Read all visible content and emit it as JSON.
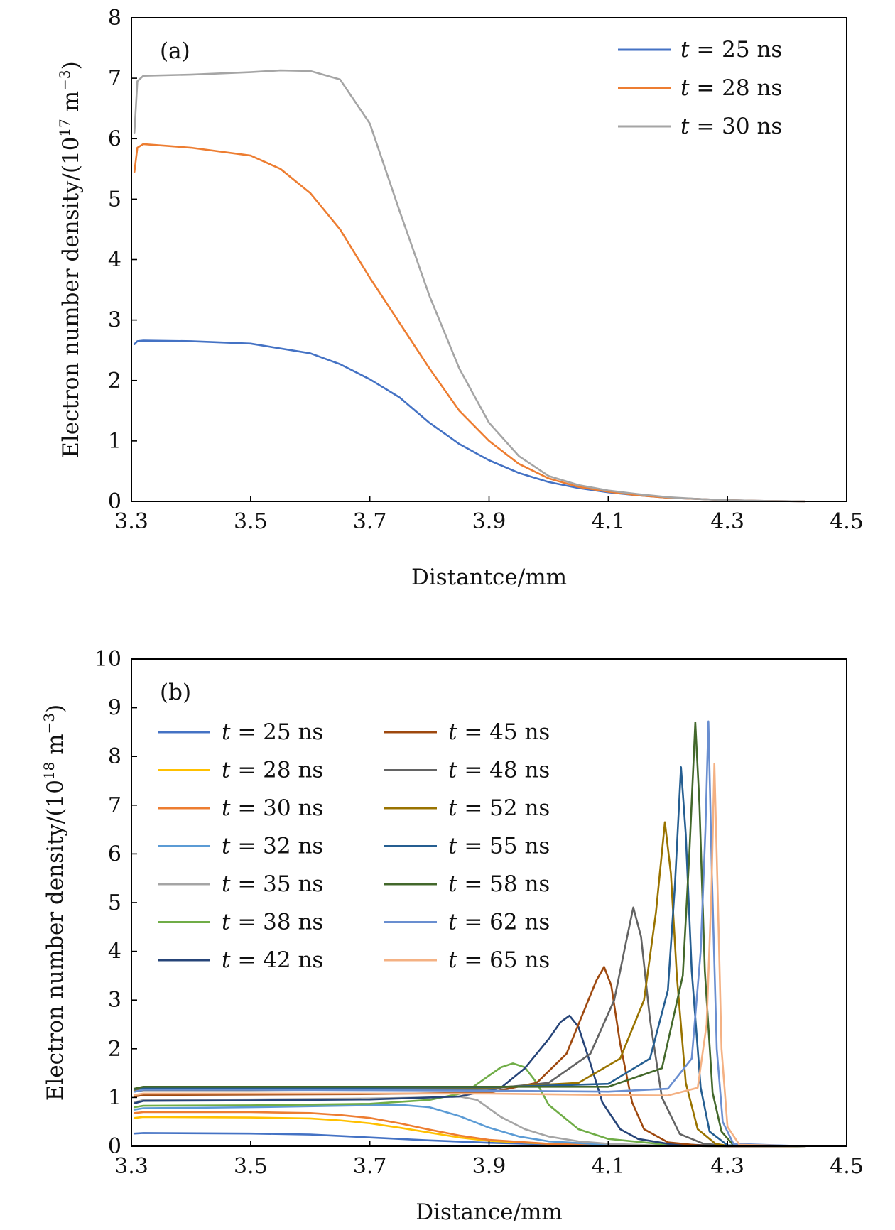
{
  "chart_data": [
    {
      "type": "line",
      "panel_label": "(a)",
      "xlabel": "Distantce/mm",
      "ylabel_prefix": "Electron number density/(10",
      "ylabel_exp": "17",
      "ylabel_unit": " m",
      "ylabel_unit_exp": "−3",
      "ylabel_suffix": ")",
      "xlim": [
        3.3,
        4.5
      ],
      "ylim": [
        0,
        8
      ],
      "xticks": [
        "3.3",
        "3.5",
        "3.7",
        "3.9",
        "4.1",
        "4.3",
        "4.5"
      ],
      "yticks": [
        "0",
        "1",
        "2",
        "3",
        "4",
        "5",
        "6",
        "7",
        "8"
      ],
      "legend_position": "top-right",
      "series": [
        {
          "name": "t = 25 ns",
          "label_var": "t",
          "label_rest": " = 25 ns",
          "color": "#4472C4",
          "x": [
            3.305,
            3.31,
            3.32,
            3.4,
            3.5,
            3.6,
            3.65,
            3.7,
            3.75,
            3.8,
            3.85,
            3.9,
            3.95,
            4.0,
            4.05,
            4.1,
            4.15,
            4.2,
            4.25,
            4.3,
            4.35,
            4.43
          ],
          "y": [
            2.6,
            2.65,
            2.66,
            2.65,
            2.61,
            2.45,
            2.27,
            2.02,
            1.72,
            1.3,
            0.95,
            0.68,
            0.47,
            0.32,
            0.22,
            0.15,
            0.1,
            0.06,
            0.04,
            0.02,
            0.01,
            0.0
          ]
        },
        {
          "name": "t = 28 ns",
          "label_var": "t",
          "label_rest": " = 28 ns",
          "color": "#ED7D31",
          "x": [
            3.305,
            3.31,
            3.32,
            3.4,
            3.5,
            3.55,
            3.6,
            3.65,
            3.7,
            3.75,
            3.8,
            3.85,
            3.9,
            3.95,
            4.0,
            4.05,
            4.1,
            4.15,
            4.2,
            4.25,
            4.3,
            4.35,
            4.43
          ],
          "y": [
            5.45,
            5.85,
            5.91,
            5.85,
            5.72,
            5.5,
            5.1,
            4.5,
            3.7,
            2.95,
            2.2,
            1.5,
            1.0,
            0.62,
            0.38,
            0.24,
            0.16,
            0.1,
            0.06,
            0.04,
            0.02,
            0.01,
            0.0
          ]
        },
        {
          "name": "t = 30 ns",
          "label_var": "t",
          "label_rest": " = 30 ns",
          "color": "#A5A5A5",
          "x": [
            3.305,
            3.31,
            3.32,
            3.4,
            3.5,
            3.55,
            3.6,
            3.65,
            3.7,
            3.75,
            3.8,
            3.85,
            3.9,
            3.95,
            4.0,
            4.05,
            4.1,
            4.15,
            4.2,
            4.25,
            4.3,
            4.35,
            4.43
          ],
          "y": [
            6.1,
            6.95,
            7.04,
            7.06,
            7.1,
            7.13,
            7.12,
            6.98,
            6.25,
            4.8,
            3.4,
            2.2,
            1.3,
            0.75,
            0.42,
            0.27,
            0.18,
            0.12,
            0.07,
            0.04,
            0.02,
            0.01,
            0.0
          ]
        }
      ]
    },
    {
      "type": "line",
      "panel_label": "(b)",
      "xlabel": "Distance/mm",
      "ylabel_prefix": "Electron number density/(10",
      "ylabel_exp": "18",
      "ylabel_unit": " m",
      "ylabel_unit_exp": "−3",
      "ylabel_suffix": ")",
      "xlim": [
        3.3,
        4.5
      ],
      "ylim": [
        0,
        10
      ],
      "xticks": [
        "3.3",
        "3.5",
        "3.7",
        "3.9",
        "4.1",
        "4.3",
        "4.5"
      ],
      "yticks": [
        "0",
        "1",
        "2",
        "3",
        "4",
        "5",
        "6",
        "7",
        "8",
        "9",
        "10"
      ],
      "legend_position": "top-left",
      "series": [
        {
          "name": "t = 25 ns",
          "label_var": "t",
          "label_rest": " = 25 ns",
          "color": "#4472C4",
          "x": [
            3.305,
            3.32,
            3.5,
            3.6,
            3.7,
            3.8,
            3.9,
            4.0,
            4.1,
            4.2,
            4.3,
            4.43
          ],
          "y": [
            0.26,
            0.27,
            0.26,
            0.24,
            0.18,
            0.12,
            0.07,
            0.04,
            0.02,
            0.01,
            0.0,
            0.0
          ]
        },
        {
          "name": "t = 28 ns",
          "label_var": "t",
          "label_rest": " = 28 ns",
          "color": "#FFC000",
          "x": [
            3.305,
            3.32,
            3.5,
            3.6,
            3.65,
            3.7,
            3.75,
            3.8,
            3.85,
            3.9,
            4.0,
            4.1,
            4.2,
            4.3,
            4.43
          ],
          "y": [
            0.58,
            0.6,
            0.59,
            0.57,
            0.53,
            0.47,
            0.38,
            0.28,
            0.18,
            0.11,
            0.05,
            0.02,
            0.01,
            0.0,
            0.0
          ]
        },
        {
          "name": "t = 30 ns",
          "label_var": "t",
          "label_rest": " = 30 ns",
          "color": "#ED7D31",
          "x": [
            3.305,
            3.32,
            3.5,
            3.6,
            3.65,
            3.7,
            3.75,
            3.8,
            3.85,
            3.9,
            4.0,
            4.1,
            4.2,
            4.3,
            4.43
          ],
          "y": [
            0.68,
            0.7,
            0.7,
            0.68,
            0.64,
            0.58,
            0.47,
            0.34,
            0.22,
            0.13,
            0.05,
            0.02,
            0.01,
            0.0,
            0.0
          ]
        },
        {
          "name": "t = 32 ns",
          "label_var": "t",
          "label_rest": " = 32 ns",
          "color": "#5B9BD5",
          "x": [
            3.305,
            3.32,
            3.5,
            3.7,
            3.75,
            3.8,
            3.85,
            3.9,
            3.95,
            4.0,
            4.1,
            4.2,
            4.3,
            4.43
          ],
          "y": [
            0.75,
            0.78,
            0.8,
            0.84,
            0.85,
            0.8,
            0.62,
            0.38,
            0.2,
            0.1,
            0.03,
            0.01,
            0.0,
            0.0
          ]
        },
        {
          "name": "t = 35 ns",
          "label_var": "t",
          "label_rest": " = 35 ns",
          "color": "#A5A5A5",
          "x": [
            3.305,
            3.32,
            3.5,
            3.7,
            3.8,
            3.85,
            3.88,
            3.92,
            3.96,
            4.0,
            4.05,
            4.1,
            4.2,
            4.3,
            4.43
          ],
          "y": [
            0.9,
            0.95,
            0.96,
            0.98,
            1.0,
            1.02,
            0.95,
            0.6,
            0.35,
            0.2,
            0.1,
            0.05,
            0.01,
            0.0,
            0.0
          ]
        },
        {
          "name": "t = 38 ns",
          "label_var": "t",
          "label_rest": " = 38 ns",
          "color": "#70AD47",
          "x": [
            3.305,
            3.32,
            3.5,
            3.7,
            3.8,
            3.86,
            3.9,
            3.92,
            3.94,
            3.96,
            3.98,
            4.0,
            4.05,
            4.1,
            4.2,
            4.3,
            4.43
          ],
          "y": [
            0.8,
            0.83,
            0.84,
            0.87,
            0.95,
            1.1,
            1.45,
            1.62,
            1.7,
            1.62,
            1.3,
            0.85,
            0.35,
            0.15,
            0.03,
            0.0,
            0.0
          ]
        },
        {
          "name": "t = 42 ns",
          "label_var": "t",
          "label_rest": " = 42 ns",
          "color": "#264478",
          "x": [
            3.305,
            3.32,
            3.5,
            3.7,
            3.85,
            3.92,
            3.96,
            4.0,
            4.02,
            4.035,
            4.05,
            4.07,
            4.09,
            4.12,
            4.15,
            4.2,
            4.3,
            4.43
          ],
          "y": [
            0.88,
            0.93,
            0.94,
            0.96,
            1.02,
            1.2,
            1.6,
            2.2,
            2.55,
            2.68,
            2.45,
            1.7,
            0.9,
            0.35,
            0.15,
            0.05,
            0.0,
            0.0
          ]
        },
        {
          "name": "t = 45 ns",
          "label_var": "t",
          "label_rest": " = 45 ns",
          "color": "#9E480E",
          "x": [
            3.305,
            3.32,
            3.5,
            3.7,
            3.9,
            3.98,
            4.03,
            4.06,
            4.08,
            4.093,
            4.105,
            4.12,
            4.14,
            4.16,
            4.2,
            4.25,
            4.3,
            4.43
          ],
          "y": [
            1.02,
            1.05,
            1.06,
            1.07,
            1.1,
            1.3,
            1.9,
            2.8,
            3.4,
            3.68,
            3.3,
            2.1,
            0.9,
            0.35,
            0.08,
            0.02,
            0.0,
            0.0
          ]
        },
        {
          "name": "t = 48 ns",
          "label_var": "t",
          "label_rest": " = 48 ns",
          "color": "#636363",
          "x": [
            3.305,
            3.32,
            3.5,
            3.7,
            3.9,
            4.0,
            4.07,
            4.11,
            4.13,
            4.142,
            4.155,
            4.17,
            4.19,
            4.22,
            4.26,
            4.3,
            4.43
          ],
          "y": [
            1.12,
            1.15,
            1.15,
            1.16,
            1.18,
            1.3,
            1.9,
            3.0,
            4.2,
            4.9,
            4.3,
            2.6,
            1.0,
            0.25,
            0.05,
            0.01,
            0.0
          ]
        },
        {
          "name": "t = 52 ns",
          "label_var": "t",
          "label_rest": " = 52 ns",
          "color": "#997300",
          "x": [
            3.305,
            3.32,
            3.5,
            3.7,
            3.9,
            4.05,
            4.12,
            4.16,
            4.18,
            4.195,
            4.205,
            4.215,
            4.23,
            4.25,
            4.28,
            4.3,
            4.43
          ],
          "y": [
            1.15,
            1.18,
            1.18,
            1.18,
            1.2,
            1.3,
            1.8,
            3.0,
            4.8,
            6.65,
            5.6,
            3.5,
            1.3,
            0.35,
            0.05,
            0.01,
            0.0
          ]
        },
        {
          "name": "t = 55 ns",
          "label_var": "t",
          "label_rest": " = 55 ns",
          "color": "#255E91",
          "x": [
            3.305,
            3.32,
            3.5,
            3.7,
            3.9,
            4.1,
            4.17,
            4.2,
            4.212,
            4.222,
            4.23,
            4.24,
            4.255,
            4.27,
            4.3,
            4.43
          ],
          "y": [
            1.17,
            1.2,
            1.2,
            1.2,
            1.21,
            1.28,
            1.8,
            3.2,
            5.4,
            7.78,
            6.4,
            3.6,
            1.2,
            0.3,
            0.02,
            0.0
          ]
        },
        {
          "name": "t = 58 ns",
          "label_var": "t",
          "label_rest": " = 58 ns",
          "color": "#43682B",
          "x": [
            3.305,
            3.32,
            3.5,
            3.7,
            3.9,
            4.1,
            4.19,
            4.225,
            4.236,
            4.246,
            4.253,
            4.262,
            4.275,
            4.29,
            4.31,
            4.43
          ],
          "y": [
            1.18,
            1.22,
            1.22,
            1.22,
            1.22,
            1.22,
            1.6,
            3.5,
            6.0,
            8.7,
            7.0,
            3.6,
            1.1,
            0.3,
            0.02,
            0.0
          ]
        },
        {
          "name": "t = 62 ns",
          "label_var": "t",
          "label_rest": " = 62 ns",
          "color": "#698ED0",
          "x": [
            3.305,
            3.32,
            3.5,
            3.7,
            3.9,
            4.1,
            4.2,
            4.24,
            4.255,
            4.263,
            4.268,
            4.274,
            4.282,
            4.292,
            4.31,
            4.43
          ],
          "y": [
            1.12,
            1.16,
            1.16,
            1.15,
            1.14,
            1.12,
            1.18,
            1.8,
            4.0,
            6.5,
            8.72,
            5.5,
            2.0,
            0.5,
            0.05,
            0.0
          ]
        },
        {
          "name": "t = 65 ns",
          "label_var": "t",
          "label_rest": " = 65 ns",
          "color": "#F4B183",
          "x": [
            3.305,
            3.32,
            3.5,
            3.7,
            3.9,
            4.1,
            4.2,
            4.25,
            4.265,
            4.273,
            4.278,
            4.284,
            4.29,
            4.3,
            4.32,
            4.43
          ],
          "y": [
            1.05,
            1.08,
            1.08,
            1.08,
            1.08,
            1.05,
            1.04,
            1.2,
            2.5,
            5.2,
            7.85,
            5.0,
            2.0,
            0.4,
            0.03,
            0.0
          ]
        }
      ]
    }
  ]
}
